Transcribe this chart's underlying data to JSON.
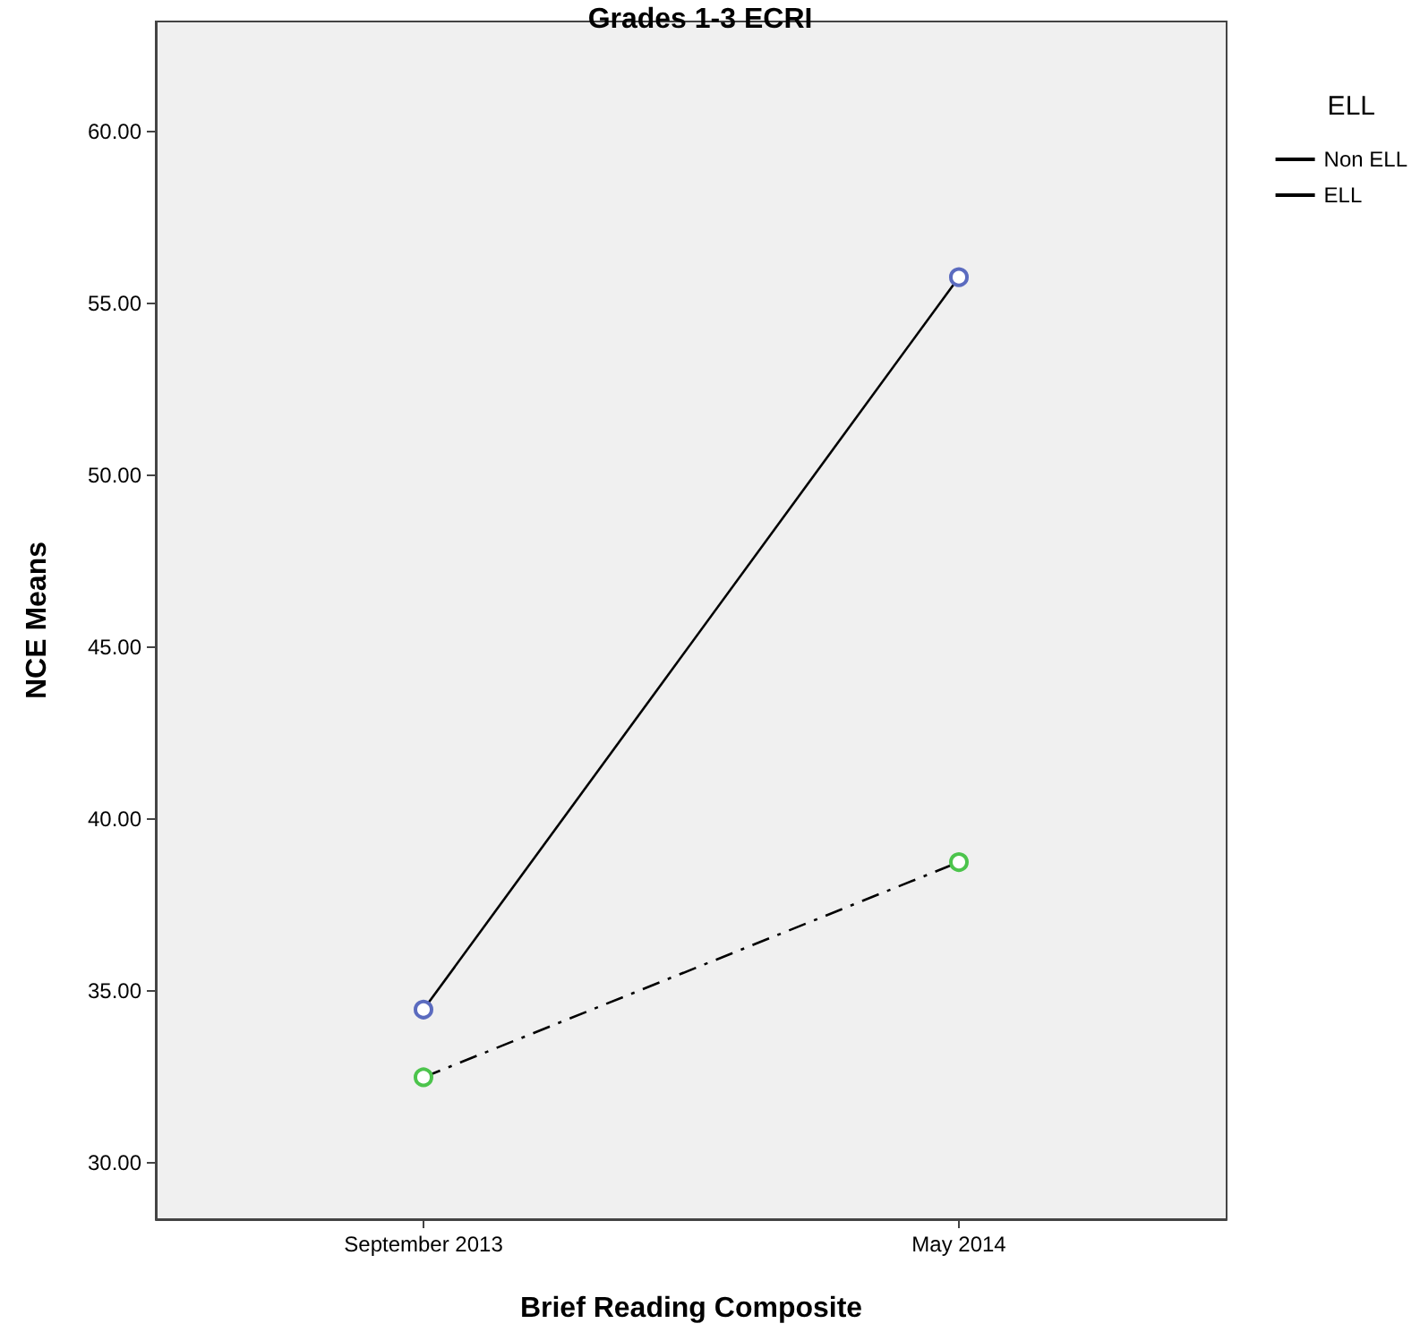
{
  "chart_data": {
    "type": "line",
    "title": "Grades 1-3 ECRI",
    "xlabel": "Brief Reading Composite",
    "ylabel": "NCE Means",
    "legend_title": "ELL",
    "categories": [
      "September 2013",
      "May 2014"
    ],
    "series": [
      {
        "name": "Non ELL",
        "color": "#000000",
        "colors": [
          "#5b6bbf",
          "#5b6bbf"
        ],
        "values": [
          34.45,
          55.76
        ],
        "line_style": "solid"
      },
      {
        "name": "ELL",
        "color": "#000000",
        "colors": [
          "#4cc44c",
          "#4cc44c"
        ],
        "values": [
          32.48,
          38.74
        ],
        "line_style": "dashed"
      }
    ],
    "ylim": [
      28.35,
      63.2
    ],
    "yticks": [
      {
        "value": 30,
        "label": "30.00"
      },
      {
        "value": 35,
        "label": "35.00"
      },
      {
        "value": 40,
        "label": "40.00"
      },
      {
        "value": 45,
        "label": "45.00"
      },
      {
        "value": 50,
        "label": "50.00"
      },
      {
        "value": 55,
        "label": "55.00"
      },
      {
        "value": 60,
        "label": "60.00"
      }
    ],
    "grid": false,
    "legend": "top right",
    "marker": "circle"
  }
}
